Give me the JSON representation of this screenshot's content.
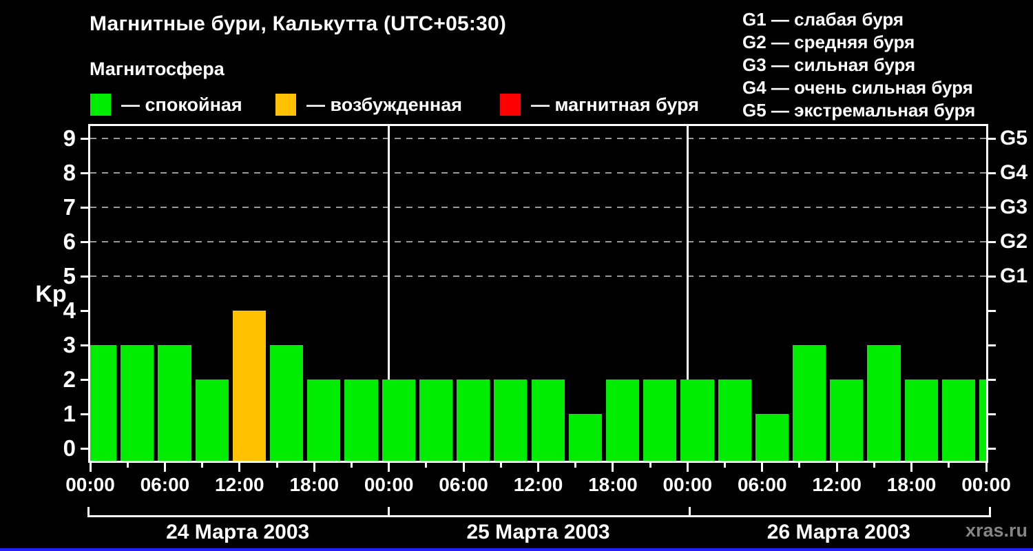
{
  "title": "Магнитные бури, Калькутта (UTC+05:30)",
  "subtitle": "Магнитосфера",
  "legend": {
    "items": [
      {
        "name": "calm",
        "color": "#00EC00",
        "label": "— спокойная"
      },
      {
        "name": "excited",
        "color": "#FFC100",
        "label": "— возбужденная"
      },
      {
        "name": "storm",
        "color": "#FF0000",
        "label": "— магнитная буря"
      }
    ]
  },
  "storm_scale": {
    "lines": [
      "G1 — слабая буря",
      "G2 — средняя буря",
      "G3 — сильная буря",
      "G4 — очень сильная буря",
      "G5 — экстремальная буря"
    ]
  },
  "chart_data": {
    "type": "bar",
    "ylabel": "Kp",
    "ylim": [
      0,
      9
    ],
    "yticks": [
      0,
      1,
      2,
      3,
      4,
      5,
      6,
      7,
      8,
      9
    ],
    "grid_levels": [
      5,
      6,
      7,
      8,
      9
    ],
    "right_axis": [
      {
        "kp": 5,
        "label": "G1"
      },
      {
        "kp": 6,
        "label": "G2"
      },
      {
        "kp": 7,
        "label": "G3"
      },
      {
        "kp": 8,
        "label": "G4"
      },
      {
        "kp": 9,
        "label": "G5"
      }
    ],
    "interval_hours": 3,
    "time_tick_labels": [
      "00:00",
      "06:00",
      "12:00",
      "18:00"
    ],
    "end_tick_label": "00:00",
    "days": [
      {
        "date": "24 Марта 2003",
        "values": [
          3,
          3,
          3,
          2,
          4,
          3,
          2,
          2
        ]
      },
      {
        "date": "25 Марта 2003",
        "values": [
          2,
          2,
          2,
          2,
          2,
          1,
          2,
          2
        ]
      },
      {
        "date": "26 Марта 2003",
        "values": [
          2,
          2,
          1,
          3,
          2,
          3,
          2,
          2
        ]
      }
    ],
    "next_interval_partial_value": 2,
    "color_thresholds": {
      "calm_max": 3,
      "excited_max": 5
    },
    "colors": {
      "calm": "#00EC00",
      "excited": "#FFC100",
      "storm": "#FF0000"
    },
    "grid": "dashed-horizontal-at-G-levels",
    "legend_position": "top"
  },
  "watermark": "xras.ru"
}
